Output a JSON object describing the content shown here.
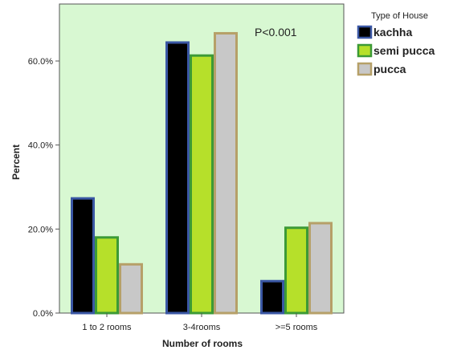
{
  "chart_data": {
    "type": "bar",
    "categories": [
      "1 to 2 rooms",
      "3-4rooms",
      ">=5 rooms"
    ],
    "series": [
      {
        "name": "kachha",
        "values": [
          27.3,
          64.4,
          7.6
        ],
        "fill": "#000000",
        "stroke": "#3a57a4"
      },
      {
        "name": "semi pucca",
        "values": [
          18.0,
          61.3,
          20.3
        ],
        "fill": "#b6e02a",
        "stroke": "#3c9a36"
      },
      {
        "name": "pucca",
        "values": [
          11.6,
          66.6,
          21.4
        ],
        "fill": "#c8c8c8",
        "stroke": "#b6a068"
      }
    ],
    "xlabel": "Number of rooms",
    "ylabel": "Percent",
    "ylim": [
      0,
      70
    ],
    "yticks": [
      0,
      20,
      40,
      60
    ],
    "ytick_labels": [
      "0.0%",
      "20.0%",
      "40.0%",
      "60.0%"
    ],
    "legend_title": "Type of House",
    "legend_position": "top-right",
    "annotation": "P<0.001",
    "background_color": "#d8f8d2",
    "grid": false
  }
}
